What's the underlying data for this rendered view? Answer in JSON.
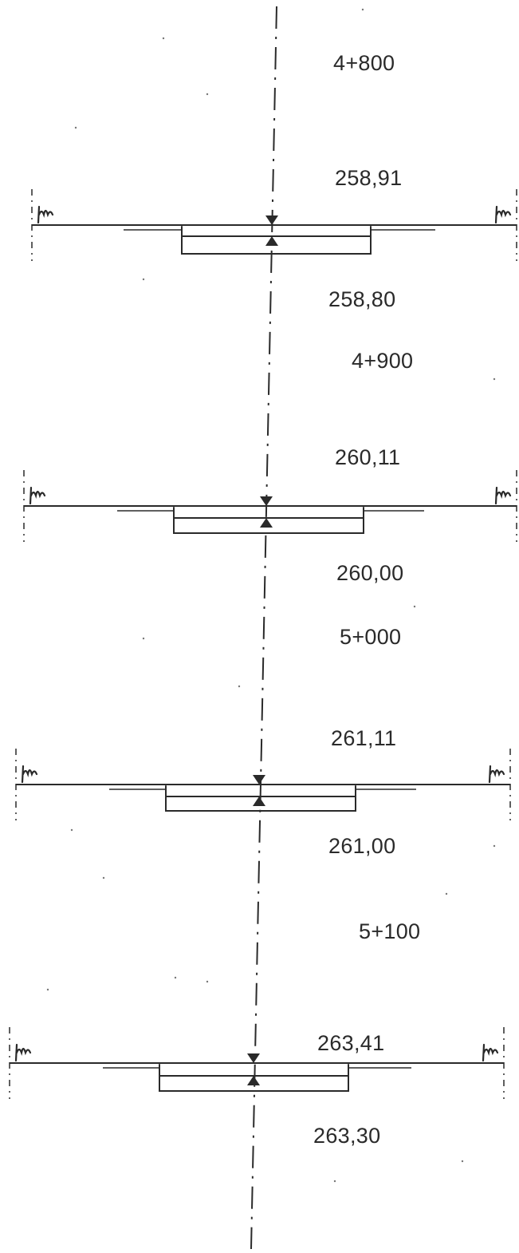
{
  "sections": [
    {
      "station": "4+800",
      "top_level": "258,91",
      "bottom_level": "258,80"
    },
    {
      "station": "4+900",
      "top_level": "260,11",
      "bottom_level": "260,00"
    },
    {
      "station": "5+000",
      "top_level": "261,11",
      "bottom_level": "261,00"
    },
    {
      "station": "5+100",
      "top_level": "263,41",
      "bottom_level": "263,30"
    }
  ],
  "colors": {
    "ink": "#2a2a2a",
    "paper": "#ffffff"
  },
  "icons": [
    "grass-symbol-icon",
    "level-marker-down-icon",
    "level-marker-up-icon"
  ]
}
